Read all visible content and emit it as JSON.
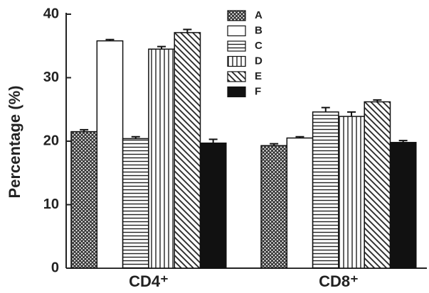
{
  "chart_data": {
    "type": "bar",
    "y_label": "Percentage (%)",
    "categories": [
      "CD4⁺",
      "CD8⁺"
    ],
    "series": [
      {
        "name": "A",
        "color": "#333333",
        "pattern": "crosshatch",
        "values": [
          21.5,
          19.3
        ],
        "errors": [
          0.3,
          0.3
        ]
      },
      {
        "name": "B",
        "color": "#ffffff",
        "pattern": "solid",
        "values": [
          35.8,
          20.5
        ],
        "errors": [
          0.2,
          0.2
        ]
      },
      {
        "name": "C",
        "color": "#222222",
        "pattern": "horizontal",
        "values": [
          20.4,
          24.6
        ],
        "errors": [
          0.3,
          0.7
        ]
      },
      {
        "name": "D",
        "color": "#222222",
        "pattern": "vertical",
        "values": [
          34.5,
          23.9
        ],
        "errors": [
          0.4,
          0.7
        ]
      },
      {
        "name": "E",
        "color": "#222222",
        "pattern": "diagonal",
        "values": [
          37.1,
          26.2
        ],
        "errors": [
          0.5,
          0.3
        ]
      },
      {
        "name": "F",
        "color": "#111111",
        "pattern": "solid",
        "values": [
          19.7,
          19.8
        ],
        "errors": [
          0.6,
          0.3
        ]
      }
    ],
    "ylim": [
      0,
      40
    ],
    "yticks": [
      0,
      10,
      20,
      30,
      40
    ],
    "legend": "top-right"
  }
}
